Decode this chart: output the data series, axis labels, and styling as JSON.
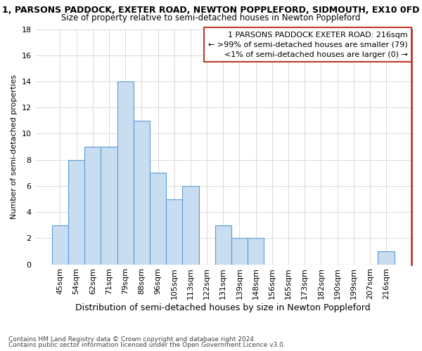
{
  "title": "1, PARSONS PADDOCK, EXETER ROAD, NEWTON POPPLEFORD, SIDMOUTH, EX10 0FD",
  "subtitle": "Size of property relative to semi-detached houses in Newton Poppleford",
  "xlabel": "Distribution of semi-detached houses by size in Newton Poppleford",
  "ylabel": "Number of semi-detached properties",
  "footnote1": "Contains HM Land Registry data © Crown copyright and database right 2024.",
  "footnote2": "Contains public sector information licensed under the Open Government Licence v3.0.",
  "categories": [
    "45sqm",
    "54sqm",
    "62sqm",
    "71sqm",
    "79sqm",
    "88sqm",
    "96sqm",
    "105sqm",
    "113sqm",
    "122sqm",
    "131sqm",
    "139sqm",
    "148sqm",
    "156sqm",
    "165sqm",
    "173sqm",
    "182sqm",
    "190sqm",
    "199sqm",
    "207sqm",
    "216sqm"
  ],
  "values": [
    3,
    8,
    9,
    9,
    14,
    11,
    7,
    5,
    6,
    0,
    3,
    2,
    2,
    0,
    0,
    0,
    0,
    0,
    0,
    0,
    1
  ],
  "highlight_index": 20,
  "bar_color": "#c8ddf0",
  "bar_edge_color": "#5b9bd5",
  "highlight_color": "#c8ddf0",
  "highlight_edge_color": "#5b9bd5",
  "right_spine_color": "#c0392b",
  "ylim": [
    0,
    18
  ],
  "yticks": [
    0,
    2,
    4,
    6,
    8,
    10,
    12,
    14,
    16,
    18
  ],
  "annotation_title": "1 PARSONS PADDOCK EXETER ROAD: 216sqm",
  "annotation_line2": "← >99% of semi-detached houses are smaller (79)",
  "annotation_line3": "<1% of semi-detached houses are larger (0) →",
  "ann_box_color": "#c0392b",
  "title_fontsize": 9,
  "subtitle_fontsize": 8.5,
  "tick_fontsize": 8,
  "ylabel_fontsize": 8,
  "xlabel_fontsize": 9,
  "ann_fontsize": 8
}
